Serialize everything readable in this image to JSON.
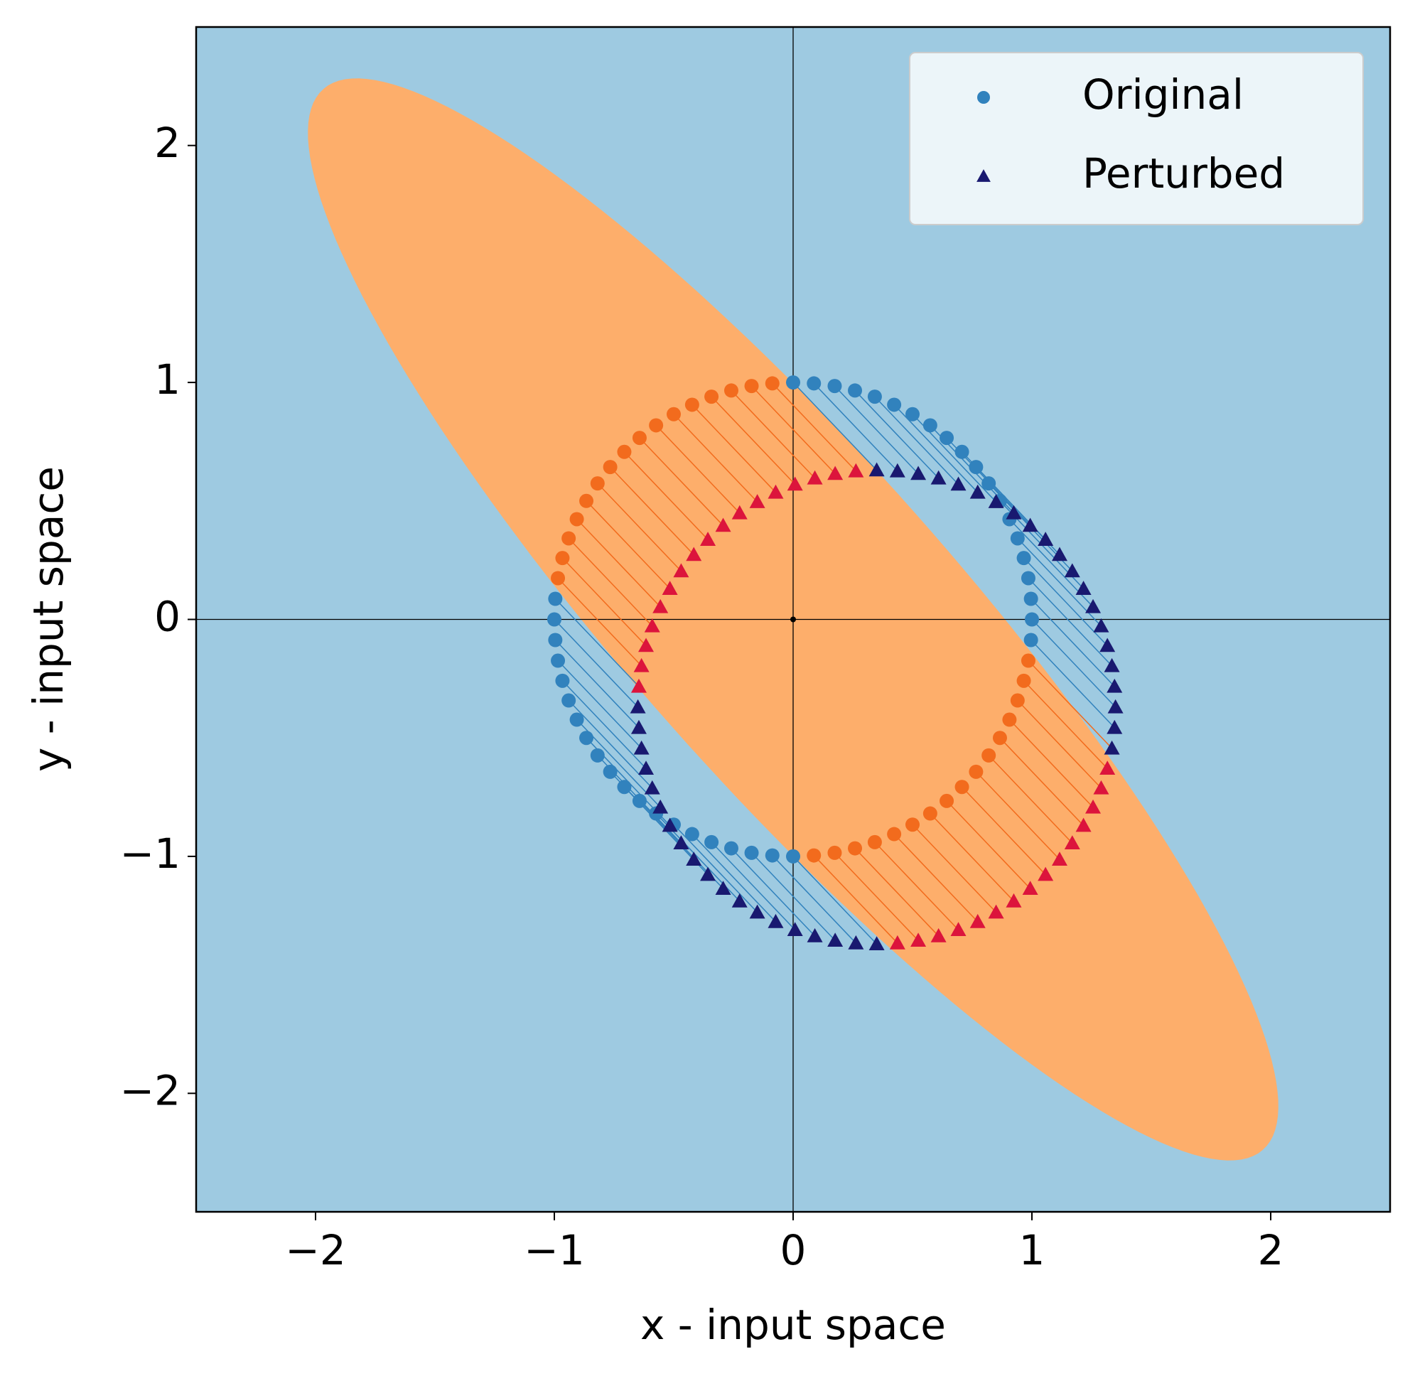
{
  "chart_data": {
    "type": "scatter",
    "xlabel": "x - input space",
    "ylabel": "y - input space",
    "xlim": [
      -2.5,
      2.5
    ],
    "ylim": [
      -2.5,
      2.5
    ],
    "xticks": [
      {
        "value": -2,
        "label": "−2"
      },
      {
        "value": -1,
        "label": "−1"
      },
      0,
      1,
      2
    ],
    "yticks": [
      {
        "value": -2,
        "label": "−2"
      },
      {
        "value": -1,
        "label": "−1"
      },
      0,
      1,
      2
    ],
    "background": "#9ecae1",
    "region": {
      "center": [
        0,
        0
      ],
      "rx": 2.98,
      "ry": 0.68,
      "angle": -48.7,
      "color": "#fdae6b"
    },
    "legend": "upper right",
    "series": [
      {
        "name": "Original",
        "marker": "circle",
        "color": "#3182bd",
        "region_color": "#f26b1d",
        "x": [
          1,
          0.996,
          0.985,
          0.966,
          0.94,
          0.906,
          0.866,
          0.819,
          0.766,
          0.707,
          0.643,
          0.574,
          0.5,
          0.423,
          0.342,
          0.259,
          0.174,
          0.087,
          0,
          -0.087,
          -0.174,
          -0.259,
          -0.342,
          -0.423,
          -0.5,
          -0.574,
          -0.643,
          -0.707,
          -0.766,
          -0.819,
          -0.866,
          -0.906,
          -0.94,
          -0.966,
          -0.985,
          -0.996,
          -1,
          -0.996,
          -0.985,
          -0.966,
          -0.94,
          -0.906,
          -0.866,
          -0.819,
          -0.766,
          -0.707,
          -0.643,
          -0.574,
          -0.5,
          -0.423,
          -0.342,
          -0.259,
          -0.174,
          -0.087,
          0,
          0.087,
          0.174,
          0.259,
          0.342,
          0.423,
          0.5,
          0.574,
          0.643,
          0.707,
          0.766,
          0.819,
          0.866,
          0.906,
          0.94,
          0.966,
          0.985,
          0.996
        ],
        "values": [
          0,
          0.087,
          0.174,
          0.259,
          0.342,
          0.423,
          0.5,
          0.574,
          0.643,
          0.707,
          0.766,
          0.819,
          0.866,
          0.906,
          0.94,
          0.966,
          0.985,
          0.996,
          1,
          0.996,
          0.985,
          0.966,
          0.94,
          0.906,
          0.866,
          0.819,
          0.766,
          0.707,
          0.643,
          0.574,
          0.5,
          0.423,
          0.342,
          0.259,
          0.174,
          0.087,
          0,
          -0.087,
          -0.174,
          -0.259,
          -0.342,
          -0.423,
          -0.5,
          -0.574,
          -0.643,
          -0.707,
          -0.766,
          -0.819,
          -0.866,
          -0.906,
          -0.94,
          -0.966,
          -0.985,
          -0.996,
          -1,
          -0.996,
          -0.985,
          -0.966,
          -0.94,
          -0.906,
          -0.866,
          -0.819,
          -0.766,
          -0.707,
          -0.643,
          -0.574,
          -0.5,
          -0.423,
          -0.342,
          -0.259,
          -0.174,
          -0.087
        ]
      },
      {
        "name": "Perturbed",
        "marker": "triangle",
        "color": "#191970",
        "region_color": "#dc143c",
        "x": [
          1.35,
          1.346,
          1.335,
          1.316,
          1.29,
          1.256,
          1.216,
          1.169,
          1.116,
          1.057,
          0.993,
          0.924,
          0.85,
          0.773,
          0.692,
          0.609,
          0.524,
          0.437,
          0.35,
          0.263,
          0.176,
          0.091,
          0.008,
          -0.073,
          -0.15,
          -0.224,
          -0.293,
          -0.357,
          -0.416,
          -0.469,
          -0.516,
          -0.556,
          -0.59,
          -0.616,
          -0.635,
          -0.646,
          -0.65,
          -0.646,
          -0.635,
          -0.616,
          -0.59,
          -0.556,
          -0.516,
          -0.469,
          -0.416,
          -0.357,
          -0.293,
          -0.224,
          -0.15,
          -0.073,
          0.008,
          0.091,
          0.176,
          0.263,
          0.35,
          0.437,
          0.524,
          0.609,
          0.692,
          0.773,
          0.85,
          0.924,
          0.993,
          1.057,
          1.116,
          1.169,
          1.216,
          1.256,
          1.29,
          1.316,
          1.335,
          1.346
        ],
        "values": [
          -0.37,
          -0.283,
          -0.196,
          -0.111,
          -0.028,
          0.053,
          0.13,
          0.204,
          0.273,
          0.337,
          0.396,
          0.449,
          0.496,
          0.536,
          0.57,
          0.596,
          0.615,
          0.626,
          0.63,
          0.626,
          0.615,
          0.596,
          0.57,
          0.536,
          0.496,
          0.449,
          0.396,
          0.337,
          0.273,
          0.204,
          0.13,
          0.053,
          -0.028,
          -0.111,
          -0.196,
          -0.283,
          -0.37,
          -0.457,
          -0.544,
          -0.629,
          -0.712,
          -0.793,
          -0.87,
          -0.944,
          -1.013,
          -1.077,
          -1.136,
          -1.189,
          -1.236,
          -1.276,
          -1.31,
          -1.336,
          -1.355,
          -1.366,
          -1.37,
          -1.366,
          -1.355,
          -1.336,
          -1.31,
          -1.276,
          -1.236,
          -1.189,
          -1.136,
          -1.077,
          -1.013,
          -0.944,
          -0.87,
          -0.793,
          -0.712,
          -0.629,
          -0.544,
          -0.457
        ]
      }
    ]
  }
}
